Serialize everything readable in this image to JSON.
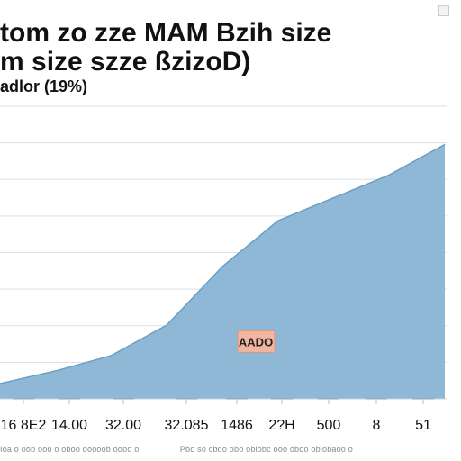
{
  "title": {
    "line1": "tom zo zze MAM Bzih size",
    "line2": "m size szze ßzizoD)"
  },
  "ylabel": "adlor (19%)",
  "annotation": "AADO",
  "footer": {
    "left": "Ioa o oob ooo o oboo ooooob oooo o",
    "right": "Pbo so cbdo obo obiobc ooo oboo obiobaoo o"
  },
  "chart_data": {
    "type": "area",
    "categories": [
      "16 8E2",
      "14.00",
      "32.00",
      "32.085",
      "1486",
      "2?H",
      "500",
      "8",
      "51"
    ],
    "x": [
      0,
      1,
      2,
      3,
      4,
      5,
      6,
      7,
      8
    ],
    "values": [
      2.1,
      2.6,
      3.2,
      4.4,
      6.7,
      8.5,
      9.4,
      10.3,
      11.5
    ],
    "ylim": [
      1.5,
      13
    ],
    "grid": true,
    "legend": "none",
    "annotation": {
      "text": "AADO",
      "x": 4.6,
      "y": 3.75
    },
    "colors": {
      "fill": "#8fb8d6",
      "line": "#6a9fc5",
      "grid": "#d9dfe5",
      "label_bg": "#f2b59f"
    }
  }
}
